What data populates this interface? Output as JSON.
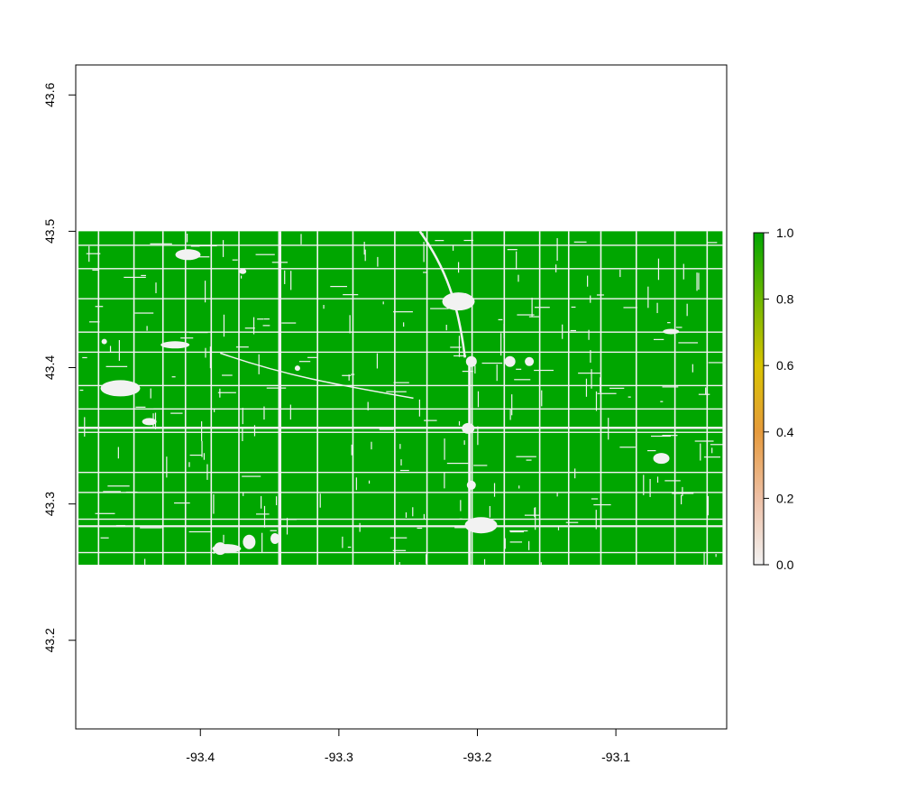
{
  "chart_data": {
    "type": "heatmap",
    "title": "",
    "xlabel": "",
    "ylabel": "",
    "xlim": [
      -93.49,
      -93.02
    ],
    "ylim": [
      43.135,
      43.622
    ],
    "x_ticks": [
      -93.4,
      -93.3,
      -93.2,
      -93.1
    ],
    "x_tick_labels": [
      "-93.4",
      "-93.3",
      "-93.2",
      "-93.1"
    ],
    "y_ticks": [
      43.2,
      43.3,
      43.4,
      43.5,
      43.6
    ],
    "y_tick_labels": [
      "43.2",
      "43.3",
      "43.4",
      "43.5",
      "43.6"
    ],
    "raster_extent": {
      "xmin": -93.488,
      "xmax": -93.023,
      "ymin": 43.255,
      "ymax": 43.5
    },
    "raster_dominant_value": 1.0,
    "raster_background_value": 0.0,
    "grid": false,
    "legend": {
      "placement": "right",
      "range": [
        0.0,
        1.0
      ],
      "ticks": [
        0.0,
        0.2,
        0.4,
        0.6,
        0.8,
        1.0
      ],
      "tick_labels": [
        "0.0",
        "0.2",
        "0.4",
        "0.6",
        "0.8",
        "1.0"
      ]
    },
    "colors": {
      "scale": [
        {
          "value": 0.0,
          "color": "#f2f2f2"
        },
        {
          "value": 0.2,
          "color": "#eec0a6"
        },
        {
          "value": 0.4,
          "color": "#e69a3c"
        },
        {
          "value": 0.6,
          "color": "#d9c400"
        },
        {
          "value": 0.8,
          "color": "#6fb800"
        },
        {
          "value": 1.0,
          "color": "#00a600"
        }
      ],
      "field": "#00a600",
      "gap": "#f2f2f2"
    }
  }
}
